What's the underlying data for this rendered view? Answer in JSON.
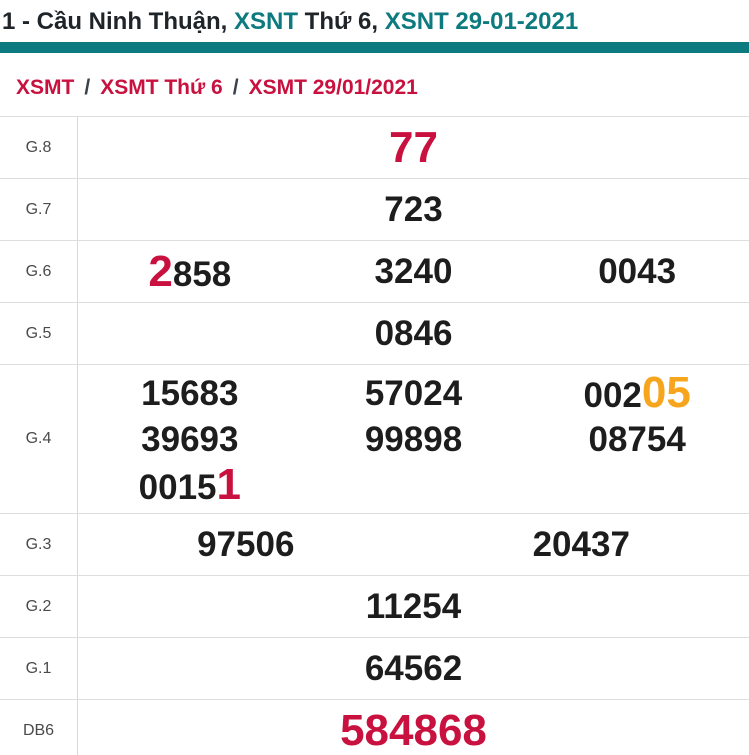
{
  "colors": {
    "teal": "#0d7a7f",
    "crimson": "#c9113f",
    "orange": "#f7a51d",
    "number_black": "#1d1d1d",
    "label_gray": "#4a4a4a",
    "border_gray": "#dedede"
  },
  "title": {
    "parts": [
      {
        "text": "1 - Cầu Ninh Thuận, "
      },
      {
        "text": "XSNT"
      },
      {
        "text": " Thứ 6, "
      },
      {
        "text": "XSNT 29-01-2021"
      }
    ]
  },
  "breadcrumb": {
    "separator": "/",
    "items": [
      {
        "label": "XSMT"
      },
      {
        "label": "XSMT Thứ 6"
      },
      {
        "label": "XSMT 29/01/2021"
      }
    ]
  },
  "table": {
    "rows": [
      {
        "label": "G.8",
        "lines": [
          {
            "cells": [
              {
                "segs": [
                  {
                    "text": "77",
                    "hl": "red"
                  }
                ]
              }
            ]
          }
        ]
      },
      {
        "label": "G.7",
        "lines": [
          {
            "cells": [
              {
                "segs": [
                  {
                    "text": "723"
                  }
                ]
              }
            ]
          }
        ]
      },
      {
        "label": "G.6",
        "lines": [
          {
            "cells": [
              {
                "segs": [
                  {
                    "text": "2",
                    "hl": "red"
                  },
                  {
                    "text": "858"
                  }
                ]
              },
              {
                "segs": [
                  {
                    "text": "3240"
                  }
                ]
              },
              {
                "segs": [
                  {
                    "text": "0043"
                  }
                ]
              }
            ]
          }
        ]
      },
      {
        "label": "G.5",
        "lines": [
          {
            "cells": [
              {
                "segs": [
                  {
                    "text": "0846"
                  }
                ]
              }
            ]
          }
        ]
      },
      {
        "label": "G.4",
        "lines": [
          {
            "cells": [
              {
                "segs": [
                  {
                    "text": "15683"
                  }
                ]
              },
              {
                "segs": [
                  {
                    "text": "57024"
                  }
                ]
              },
              {
                "segs": [
                  {
                    "text": "002"
                  },
                  {
                    "text": "05",
                    "hl": "orange"
                  }
                ]
              }
            ]
          },
          {
            "cells": [
              {
                "segs": [
                  {
                    "text": "39693"
                  }
                ]
              },
              {
                "segs": [
                  {
                    "text": "99898"
                  }
                ]
              },
              {
                "segs": [
                  {
                    "text": "08754"
                  }
                ]
              }
            ]
          },
          {
            "cells": [
              {
                "segs": [
                  {
                    "text": "0015"
                  },
                  {
                    "text": "1",
                    "hl": "red"
                  }
                ]
              }
            ]
          }
        ]
      },
      {
        "label": "G.3",
        "lines": [
          {
            "cells": [
              {
                "segs": [
                  {
                    "text": "97506"
                  }
                ]
              },
              {
                "segs": [
                  {
                    "text": "20437"
                  }
                ]
              }
            ]
          }
        ]
      },
      {
        "label": "G.2",
        "lines": [
          {
            "cells": [
              {
                "segs": [
                  {
                    "text": "11254"
                  }
                ]
              }
            ]
          }
        ]
      },
      {
        "label": "G.1",
        "lines": [
          {
            "cells": [
              {
                "segs": [
                  {
                    "text": "64562"
                  }
                ]
              }
            ]
          }
        ]
      },
      {
        "label": "DB6",
        "lines": [
          {
            "cells": [
              {
                "segs": [
                  {
                    "text": "584868",
                    "hl": "red"
                  }
                ]
              }
            ]
          }
        ]
      }
    ]
  }
}
